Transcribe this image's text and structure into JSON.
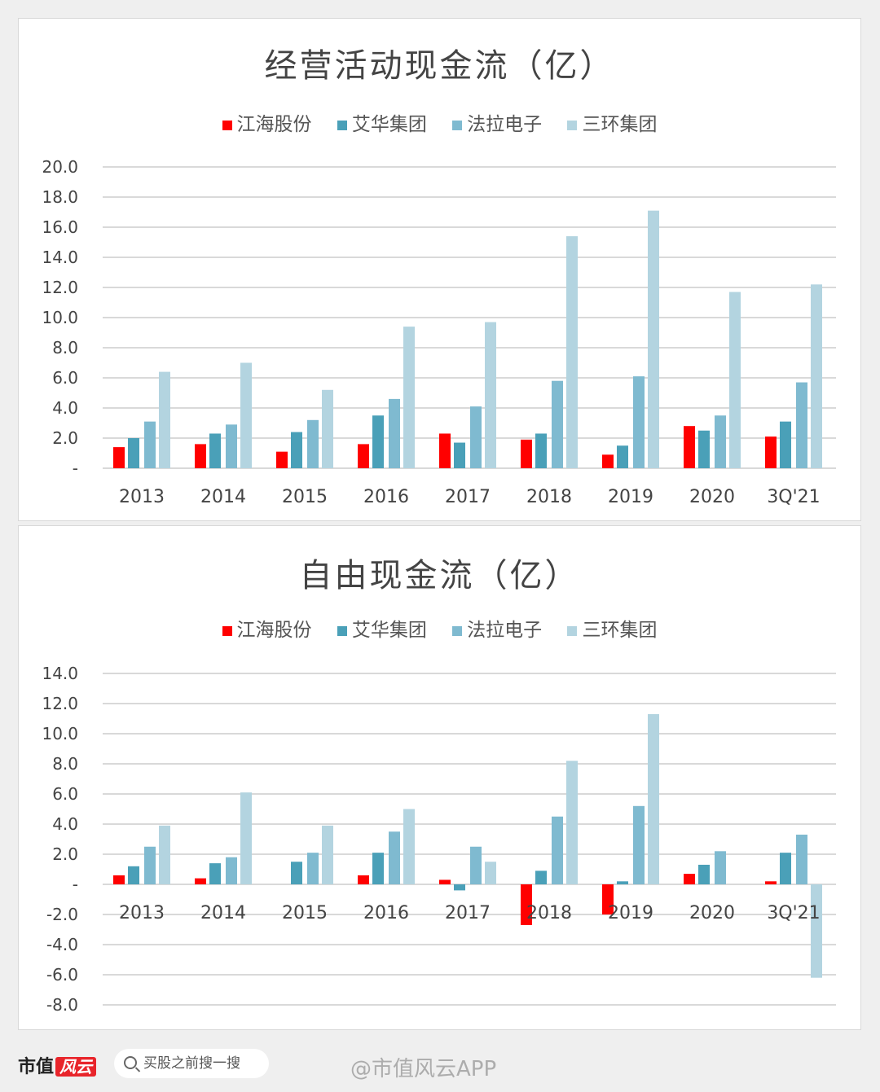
{
  "chart_data": [
    {
      "type": "bar",
      "title": "经营活动现金流（亿）",
      "categories": [
        "2013",
        "2014",
        "2015",
        "2016",
        "2017",
        "2018",
        "2019",
        "2020",
        "3Q'21"
      ],
      "ylim": [
        0,
        20
      ],
      "yticks": [
        0,
        2,
        4,
        6,
        8,
        10,
        12,
        14,
        16,
        18,
        20
      ],
      "ytick_labels": [
        "-",
        "2.0",
        "4.0",
        "6.0",
        "8.0",
        "10.0",
        "12.0",
        "14.0",
        "16.0",
        "18.0",
        "20.0"
      ],
      "grid": true,
      "legend_position": "top",
      "series": [
        {
          "name": "江海股份",
          "color": "#ff0000",
          "values": [
            1.4,
            1.6,
            1.1,
            1.6,
            2.3,
            1.9,
            0.9,
            2.8,
            2.1
          ]
        },
        {
          "name": "艾华集团",
          "color": "#4aa0b8",
          "values": [
            2.0,
            2.3,
            2.4,
            3.5,
            1.7,
            2.3,
            1.5,
            2.5,
            3.1
          ]
        },
        {
          "name": "法拉电子",
          "color": "#7fbad0",
          "values": [
            3.1,
            2.9,
            3.2,
            4.6,
            4.1,
            5.8,
            6.1,
            3.5,
            5.7
          ]
        },
        {
          "name": "三环集团",
          "color": "#b3d4e0",
          "values": [
            6.4,
            7.0,
            5.2,
            9.4,
            9.7,
            15.4,
            17.1,
            11.7,
            12.2
          ]
        }
      ]
    },
    {
      "type": "bar",
      "title": "自由现金流（亿）",
      "categories": [
        "2013",
        "2014",
        "2015",
        "2016",
        "2017",
        "2018",
        "2019",
        "2020",
        "3Q'21"
      ],
      "ylim": [
        -8,
        14
      ],
      "yticks": [
        -8,
        -6,
        -4,
        -2,
        0,
        2,
        4,
        6,
        8,
        10,
        12,
        14
      ],
      "ytick_labels": [
        "-8.0",
        "-6.0",
        "-4.0",
        "-2.0",
        "-",
        "2.0",
        "4.0",
        "6.0",
        "8.0",
        "10.0",
        "12.0",
        "14.0"
      ],
      "grid": true,
      "legend_position": "top",
      "series": [
        {
          "name": "江海股份",
          "color": "#ff0000",
          "values": [
            0.6,
            0.4,
            0,
            0.6,
            0.3,
            -2.7,
            -2.0,
            0.7,
            0.2
          ]
        },
        {
          "name": "艾华集团",
          "color": "#4aa0b8",
          "values": [
            1.2,
            1.4,
            1.5,
            2.1,
            -0.4,
            0.9,
            0.2,
            1.3,
            2.1
          ]
        },
        {
          "name": "法拉电子",
          "color": "#7fbad0",
          "values": [
            2.5,
            1.8,
            2.1,
            3.5,
            2.5,
            4.5,
            5.2,
            2.2,
            3.3
          ]
        },
        {
          "name": "三环集团",
          "color": "#b3d4e0",
          "values": [
            3.9,
            6.1,
            3.9,
            5.0,
            1.5,
            8.2,
            11.3,
            null,
            -6.2
          ]
        }
      ]
    }
  ],
  "footer": {
    "logo_text": "市值",
    "logo_badge": "风云",
    "search_placeholder": "买股之前搜一搜",
    "watermark": "@市值风云APP"
  }
}
